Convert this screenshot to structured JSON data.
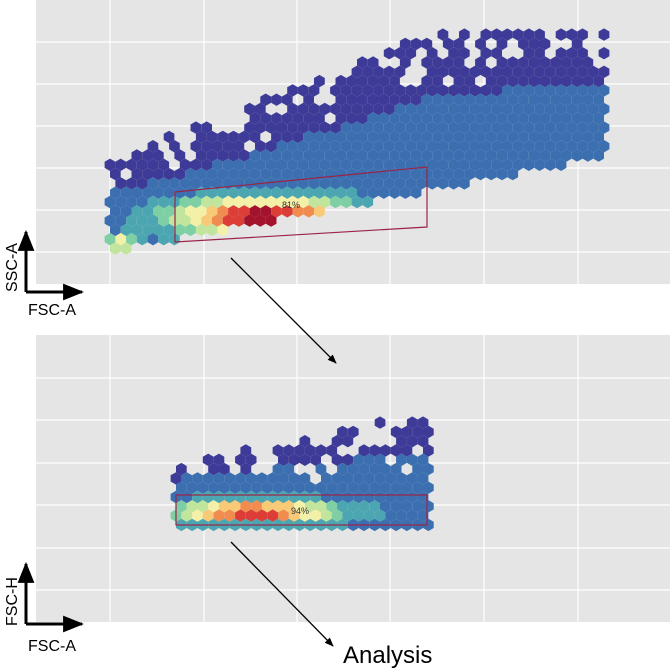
{
  "chart_data": [
    {
      "type": "heatmap",
      "subtype": "hexbin density (flow cytometry)",
      "xlabel": "FSC-A",
      "ylabel": "SSC-A",
      "grid": true,
      "tick_labels_visible": false,
      "colorscale": [
        "#3e3b98",
        "#3b6fb0",
        "#4ca6b1",
        "#7ecfa3",
        "#c2e59d",
        "#f3f1a7",
        "#f8c977",
        "#f08c4f",
        "#dc3e37",
        "#a3132c"
      ],
      "gate": {
        "shape": "polygon",
        "label": "81%",
        "percent": 81
      }
    },
    {
      "type": "heatmap",
      "subtype": "hexbin density (flow cytometry)",
      "xlabel": "FSC-A",
      "ylabel": "FSC-H",
      "grid": true,
      "tick_labels_visible": false,
      "colorscale": [
        "#3e3b98",
        "#3b6fb0",
        "#4ca6b1",
        "#7ecfa3",
        "#c2e59d",
        "#f3f1a7",
        "#f8c977",
        "#f08c4f",
        "#dc3e37",
        "#a3132c"
      ],
      "gate": {
        "shape": "rectangle",
        "label": "94%",
        "percent": 94
      }
    }
  ],
  "flow": {
    "caption": "Analysis"
  }
}
